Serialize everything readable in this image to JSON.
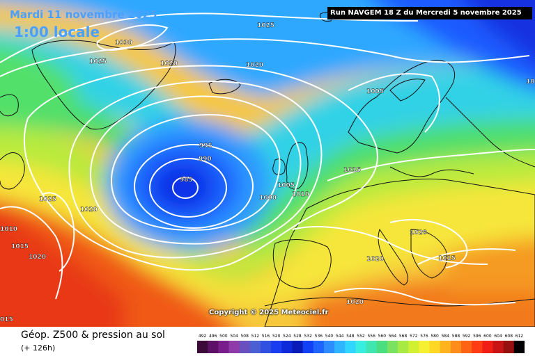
{
  "header": {
    "date": "Mardi 11 novembre 2025",
    "time": "1:00 locale",
    "run": "Run NAVGEM 18 Z du Mercredi 5 novembre 2025"
  },
  "copyright": "Copyright © 2025 Meteociel.fr",
  "legend": {
    "title": "Géop. Z500 & pression au sol",
    "subtitle": "(+ 126h)",
    "scale_values": [
      "492",
      "496",
      "500",
      "504",
      "508",
      "512",
      "516",
      "520",
      "524",
      "528",
      "532",
      "536",
      "540",
      "544",
      "548",
      "552",
      "556",
      "560",
      "564",
      "568",
      "572",
      "576",
      "580",
      "584",
      "588",
      "592",
      "596",
      "600",
      "604",
      "608",
      "612"
    ],
    "scale_colors": [
      "#3b0a38",
      "#5c1066",
      "#7a1d8c",
      "#8e3aa8",
      "#6a4fbf",
      "#4a5fd1",
      "#2f50e0",
      "#1a3df0",
      "#0f2ad9",
      "#0a1cb8",
      "#1140f5",
      "#1e64ff",
      "#2d8dff",
      "#2fb4ff",
      "#30d6ff",
      "#38eee0",
      "#40e6b0",
      "#4ade80",
      "#7ae260",
      "#a8ea44",
      "#d2f032",
      "#f5f032",
      "#ffd724",
      "#ffb41e",
      "#ff8c1a",
      "#ff6414",
      "#ff3c14",
      "#f01e14",
      "#c81414",
      "#961010",
      "#000000"
    ]
  },
  "isobar_labels": [
    {
      "id": "iso-1025-a",
      "text": "1025"
    },
    {
      "id": "iso-1030",
      "text": "1030"
    },
    {
      "id": "iso-1025-b",
      "text": "1025"
    },
    {
      "id": "iso-1020-a",
      "text": "1020"
    },
    {
      "id": "iso-1020-b",
      "text": "1020"
    },
    {
      "id": "iso-1005-a",
      "text": "1005"
    },
    {
      "id": "iso-995",
      "text": "995"
    },
    {
      "id": "iso-990",
      "text": "990"
    },
    {
      "id": "iso-985",
      "text": "985"
    },
    {
      "id": "iso-1015-a",
      "text": "1015"
    },
    {
      "id": "iso-1005-b",
      "text": "1005"
    },
    {
      "id": "iso-1010-a",
      "text": "1010"
    },
    {
      "id": "iso-1000",
      "text": "1000"
    },
    {
      "id": "iso-1025-c",
      "text": "1025"
    },
    {
      "id": "iso-1020-c",
      "text": "1020"
    },
    {
      "id": "iso-1010-b",
      "text": "1010"
    },
    {
      "id": "iso-1015-b",
      "text": "1015"
    },
    {
      "id": "iso-1020-d",
      "text": "1020"
    },
    {
      "id": "iso-1020-e",
      "text": "1020"
    },
    {
      "id": "iso-1020-f",
      "text": "1020"
    },
    {
      "id": "iso-1015-c",
      "text": "1015"
    },
    {
      "id": "iso-1020-g",
      "text": "1020"
    },
    {
      "id": "iso-015",
      "text": "015"
    },
    {
      "id": "iso-10-right",
      "text": "10"
    }
  ]
}
